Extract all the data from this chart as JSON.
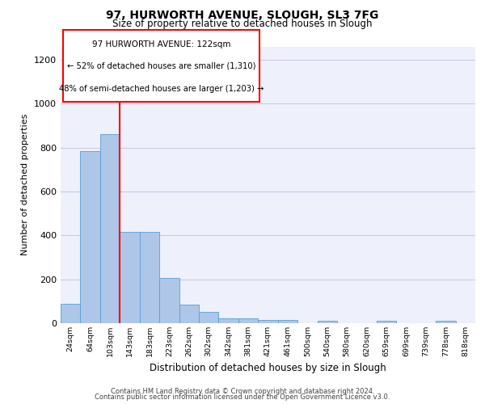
{
  "title": "97, HURWORTH AVENUE, SLOUGH, SL3 7FG",
  "subtitle": "Size of property relative to detached houses in Slough",
  "xlabel": "Distribution of detached houses by size in Slough",
  "ylabel": "Number of detached properties",
  "bar_color": "#aec6e8",
  "bar_edge_color": "#5a9fd4",
  "bins": [
    "24sqm",
    "64sqm",
    "103sqm",
    "143sqm",
    "183sqm",
    "223sqm",
    "262sqm",
    "302sqm",
    "342sqm",
    "381sqm",
    "421sqm",
    "461sqm",
    "500sqm",
    "540sqm",
    "580sqm",
    "620sqm",
    "659sqm",
    "699sqm",
    "739sqm",
    "778sqm",
    "818sqm"
  ],
  "values": [
    90,
    785,
    860,
    415,
    415,
    205,
    85,
    50,
    22,
    22,
    15,
    15,
    0,
    10,
    0,
    0,
    10,
    0,
    0,
    10,
    0
  ],
  "ylim": [
    0,
    1260
  ],
  "yticks": [
    0,
    200,
    400,
    600,
    800,
    1000,
    1200
  ],
  "red_line_x": 2.5,
  "annotation_title": "97 HURWORTH AVENUE: 122sqm",
  "annotation_line1": "← 52% of detached houses are smaller (1,310)",
  "annotation_line2": "48% of semi-detached houses are larger (1,203) →",
  "footer_line1": "Contains HM Land Registry data © Crown copyright and database right 2024.",
  "footer_line2": "Contains public sector information licensed under the Open Government Licence v3.0.",
  "background_color": "#eef0fb",
  "grid_color": "#c8cce8"
}
